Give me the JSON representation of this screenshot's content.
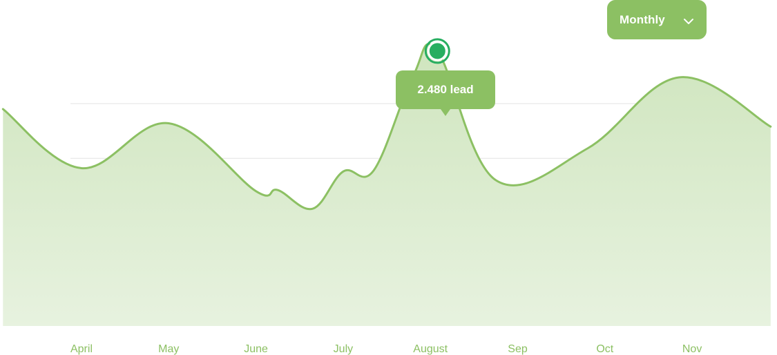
{
  "colors": {
    "line": "#8cc063",
    "fill_top": "#cfe5be",
    "fill_bottom": "#e7f2df",
    "grid": "#e3e3e3",
    "axis_label": "#8cc063",
    "button_bg": "#8cc063",
    "tooltip_bg": "#8cc063",
    "point_fill": "#27ae60",
    "point_ring": "#ffffff"
  },
  "period_selector": {
    "label": "Monthly",
    "icon": "chevron-down-icon"
  },
  "tooltip": {
    "label": "2.480 lead"
  },
  "chart_data": {
    "type": "area",
    "title": "",
    "xlabel": "",
    "ylabel": "",
    "categories": [
      "April",
      "May",
      "June",
      "July",
      "August",
      "Sep",
      "Oct",
      "Nov"
    ],
    "series": [
      {
        "x": [
          -0.9,
          0.0,
          1.0,
          2.0,
          2.25,
          2.65,
          3.0,
          3.35,
          3.8,
          4.08,
          4.75,
          5.8,
          6.85,
          7.9
        ],
        "values": [
          1950,
          1410,
          1820,
          1200,
          1210,
          1040,
          1380,
          1390,
          2250,
          2480,
          1300,
          1590,
          2240,
          1790
        ]
      }
    ],
    "ylim": [
      0,
      2980
    ],
    "y_gridlines": [
      0,
      500,
      1000,
      1500,
      2000
    ],
    "highlight": {
      "category": "August",
      "value": 2480,
      "label": "2.480 lead"
    },
    "grid": true,
    "legend": "none"
  }
}
